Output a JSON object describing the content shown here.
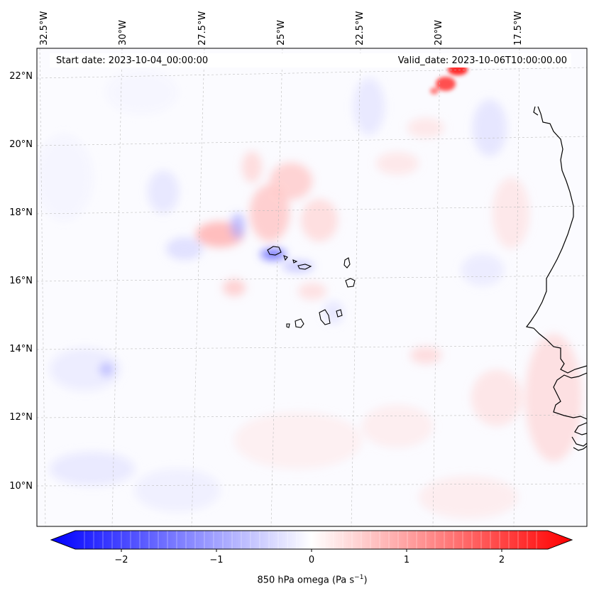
{
  "header": {
    "start_date": "Start date: 2023-10-04_00:00:00",
    "valid_date": "Valid_date: 2023-10-06T10:00:00.00"
  },
  "longitude_labels": [
    "32.5°W",
    "30°W",
    "27.5°W",
    "25°W",
    "22.5°W",
    "20°W",
    "17.5°W"
  ],
  "latitude_labels": [
    "22°N",
    "20°N",
    "18°N",
    "16°N",
    "14°N",
    "12°N",
    "10°N"
  ],
  "colorbar": {
    "label_main": "850 hPa omega (Pa s",
    "label_exp": "−1",
    "label_close": ")",
    "ticks": [
      "−2",
      "−1",
      "0",
      "1",
      "2"
    ],
    "range": [
      -2.6,
      2.6
    ],
    "colormap": "bwr",
    "min_color": "#0000ff",
    "mid_color": "#ffffff",
    "max_color": "#ff0000"
  },
  "map": {
    "field": "850 hPa omega",
    "projection": "lambert conformal",
    "extent_lon": [
      -32.5,
      -16
    ],
    "extent_lat": [
      9,
      22.7
    ],
    "gridlines": true,
    "coastline_color": "#000000"
  }
}
